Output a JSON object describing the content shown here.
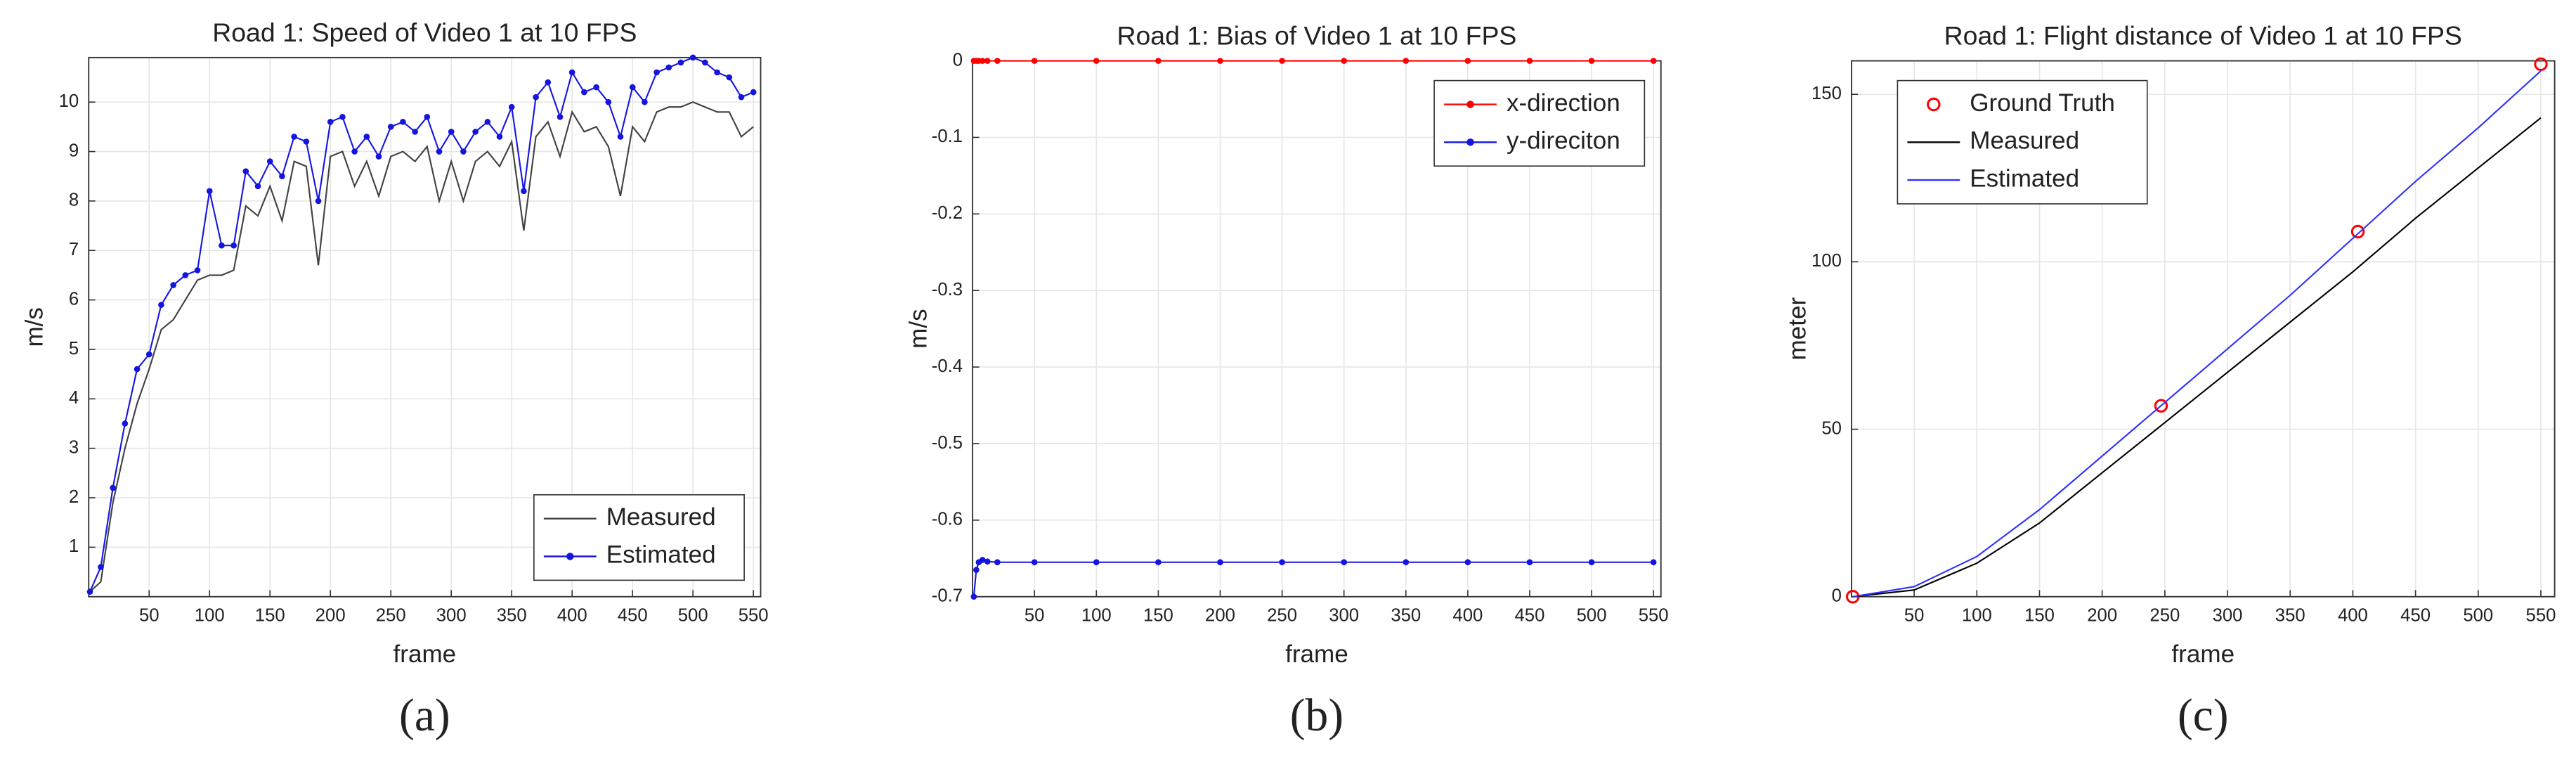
{
  "chart_data": [
    {
      "type": "line",
      "title": "Road 1: Speed of Video 1 at 10 FPS",
      "caption": "(a)",
      "xlabel": "frame",
      "ylabel": "m/s",
      "x": [
        1,
        10,
        20,
        30,
        40,
        50,
        60,
        70,
        80,
        90,
        100,
        110,
        120,
        130,
        140,
        150,
        160,
        170,
        180,
        190,
        200,
        210,
        220,
        230,
        240,
        250,
        260,
        270,
        280,
        290,
        300,
        310,
        320,
        330,
        340,
        350,
        360,
        370,
        380,
        390,
        400,
        410,
        420,
        430,
        440,
        450,
        460,
        470,
        480,
        490,
        500,
        510,
        520,
        530,
        540,
        550
      ],
      "series": [
        {
          "name": "Measured",
          "color": "#404040",
          "marker": "none",
          "values": [
            0.1,
            0.3,
            1.9,
            3.0,
            3.9,
            4.6,
            5.4,
            5.6,
            6.0,
            6.4,
            6.5,
            6.5,
            6.6,
            7.9,
            7.7,
            8.3,
            7.6,
            8.8,
            8.7,
            6.7,
            8.9,
            9.0,
            8.3,
            8.8,
            8.1,
            8.9,
            9.0,
            8.8,
            9.1,
            8.0,
            8.8,
            8.0,
            8.8,
            9.0,
            8.7,
            9.2,
            7.4,
            9.3,
            9.6,
            8.9,
            9.8,
            9.4,
            9.5,
            9.1,
            8.1,
            9.5,
            9.2,
            9.8,
            9.9,
            9.9,
            10.0,
            9.9,
            9.8,
            9.8,
            9.3,
            9.5
          ]
        },
        {
          "name": "Estimated",
          "color": "#1515e0",
          "marker": "dot",
          "values": [
            0.1,
            0.6,
            2.2,
            3.5,
            4.6,
            4.9,
            5.9,
            6.3,
            6.5,
            6.6,
            8.2,
            7.1,
            7.1,
            8.6,
            8.3,
            8.8,
            8.5,
            9.3,
            9.2,
            8.0,
            9.6,
            9.7,
            9.0,
            9.3,
            8.9,
            9.5,
            9.6,
            9.4,
            9.7,
            9.0,
            9.4,
            9.0,
            9.4,
            9.6,
            9.3,
            9.9,
            8.2,
            10.1,
            10.4,
            9.7,
            10.6,
            10.2,
            10.3,
            10.0,
            9.3,
            10.3,
            10.0,
            10.6,
            10.7,
            10.8,
            10.9,
            10.8,
            10.6,
            10.5,
            10.1,
            10.2
          ]
        }
      ],
      "xlim": [
        0,
        556
      ],
      "ylim": [
        0,
        10.9
      ],
      "xticks": [
        50,
        100,
        150,
        200,
        250,
        300,
        350,
        400,
        450,
        500,
        550
      ],
      "yticks": [
        1,
        2,
        3,
        4,
        5,
        6,
        7,
        8,
        9,
        10
      ],
      "grid": true,
      "legend": "lower right"
    },
    {
      "type": "line",
      "title": "Road 1: Bias of Video 1 at 10 FPS",
      "caption": "(b)",
      "xlabel": "frame",
      "ylabel": "m/s",
      "x": [
        1,
        3,
        5,
        8,
        12,
        20,
        50,
        100,
        150,
        200,
        250,
        300,
        350,
        400,
        450,
        500,
        550
      ],
      "series": [
        {
          "name": "x-direction",
          "color": "#ff0000",
          "marker": "dot",
          "values": [
            0,
            0,
            0,
            0,
            0,
            0,
            0,
            0,
            0,
            0,
            0,
            0,
            0,
            0,
            0,
            0,
            0
          ]
        },
        {
          "name": "y-direciton",
          "color": "#1515e0",
          "marker": "dot",
          "values": [
            -0.7,
            -0.665,
            -0.655,
            -0.652,
            -0.654,
            -0.655,
            -0.655,
            -0.655,
            -0.655,
            -0.655,
            -0.655,
            -0.655,
            -0.655,
            -0.655,
            -0.655,
            -0.655,
            -0.655
          ]
        }
      ],
      "xlim": [
        0,
        556
      ],
      "ylim": [
        -0.7,
        0
      ],
      "xticks": [
        50,
        100,
        150,
        200,
        250,
        300,
        350,
        400,
        450,
        500,
        550
      ],
      "yticks": [
        0,
        -0.1,
        -0.2,
        -0.3,
        -0.4,
        -0.5,
        -0.6,
        -0.7
      ],
      "grid": true,
      "legend": "upper right"
    },
    {
      "type": "line",
      "title": "Road 1: Flight distance of Video 1 at 10 FPS",
      "caption": "(c)",
      "xlabel": "frame",
      "ylabel": "meter",
      "x": [
        1,
        50,
        100,
        150,
        200,
        250,
        300,
        350,
        400,
        450,
        500,
        550
      ],
      "series": [
        {
          "name": "Ground Truth",
          "color": "#ff0000",
          "marker": "circle",
          "linestyle": "none",
          "x": [
            1,
            247,
            404,
            550
          ],
          "values": [
            0,
            57,
            109,
            159
          ]
        },
        {
          "name": "Measured",
          "color": "#000000",
          "marker": "none",
          "values": [
            0,
            2,
            10,
            22,
            37,
            52,
            67,
            82,
            97,
            113,
            128,
            143
          ]
        },
        {
          "name": "Estimated",
          "color": "#3030ff",
          "marker": "none",
          "values": [
            0,
            3,
            12,
            26,
            42,
            58,
            74,
            90,
            107,
            124,
            140,
            157
          ]
        }
      ],
      "xlim": [
        0,
        561
      ],
      "ylim": [
        0,
        160
      ],
      "xticks": [
        50,
        100,
        150,
        200,
        250,
        300,
        350,
        400,
        450,
        500,
        550
      ],
      "yticks": [
        0,
        50,
        100,
        150
      ],
      "grid": true,
      "legend": "upper left"
    }
  ]
}
